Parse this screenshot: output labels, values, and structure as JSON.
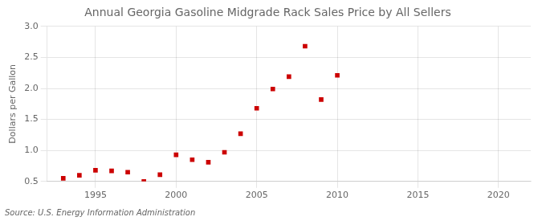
{
  "chart_data": {
    "type": "scatter",
    "title": "Annual Georgia Gasoline Midgrade Rack Sales Price by All Sellers",
    "ylabel": "Dollars per Gallon",
    "source": "Source: U.S. Energy Information Administration",
    "x": [
      1993,
      1994,
      1995,
      1996,
      1997,
      1998,
      1999,
      2000,
      2001,
      2002,
      2003,
      2004,
      2005,
      2006,
      2007,
      2008,
      2009,
      2010
    ],
    "values": [
      0.55,
      0.6,
      0.68,
      0.67,
      0.65,
      0.5,
      0.61,
      0.93,
      0.85,
      0.81,
      0.97,
      1.27,
      1.68,
      1.99,
      2.19,
      2.68,
      1.82,
      2.21
    ],
    "color": "#cc0000",
    "marker": "square",
    "xlim": [
      1992,
      2022
    ],
    "ylim": [
      0.5,
      3.0
    ],
    "xticks": [
      1995,
      2000,
      2005,
      2010,
      2015,
      2020
    ],
    "yticks": [
      0.5,
      {
        "value": 1.0,
        "label": "1.0"
      },
      1.5,
      {
        "value": 2.0,
        "label": "2.0"
      },
      2.5,
      {
        "value": 3.0,
        "label": "3.0"
      }
    ],
    "grid": true
  }
}
